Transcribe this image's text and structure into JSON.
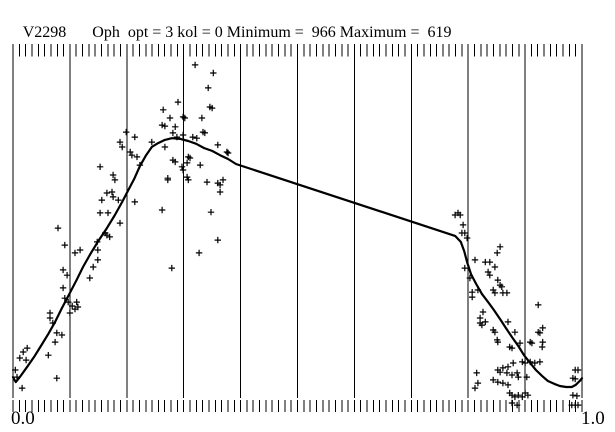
{
  "window": {
    "title_star": "V2298",
    "title_params": "Oph  opt = 3 kol = 0 Minimum =  966 Maximum =  619"
  },
  "axis": {
    "x_min_label": "0.0",
    "x_max_label": "1.0"
  },
  "colors": {
    "ink": "#000000",
    "paper": "#ffffff"
  },
  "chart_data": {
    "type": "scatter",
    "title": "V2298 Oph opt = 3 kol = 0 Minimum = 966 Maximum = 619",
    "xlabel": "",
    "ylabel": "",
    "x_axis": {
      "min_label": "0.0",
      "max_label": "1.0",
      "range": [
        0,
        1
      ]
    },
    "y_axis": {
      "labeled": false,
      "units": "relative level: 0 = plot bottom gridline end, 1 = plot top"
    },
    "grid": {
      "vertical_gridlines_at": [
        0,
        0.1,
        0.2,
        0.3,
        0.4,
        0.5,
        0.6,
        0.7,
        0.8,
        0.9,
        1.0
      ],
      "minor_tick_intervals": 90,
      "tick_combs": [
        "top",
        "bottom"
      ],
      "horizontal_gridlines": 0
    },
    "legend": "none",
    "series": [
      {
        "name": "observations",
        "type": "scatter",
        "marker": "+",
        "points": [
          [
            0.004,
            0.079
          ],
          [
            0.007,
            0.059
          ],
          [
            0.016,
            0.028
          ],
          [
            0.012,
            0.113
          ],
          [
            0.018,
            0.13
          ],
          [
            0.023,
            0.107
          ],
          [
            0.025,
            0.141
          ],
          [
            0.065,
            0.226
          ],
          [
            0.07,
            0.212
          ],
          [
            0.062,
            0.121
          ],
          [
            0.074,
            0.158
          ],
          [
            0.077,
            0.184
          ],
          [
            0.086,
            0.178
          ],
          [
            0.077,
            0.056
          ],
          [
            0.065,
            0.24
          ],
          [
            0.079,
            0.48
          ],
          [
            0.091,
            0.432
          ],
          [
            0.088,
            0.362
          ],
          [
            0.095,
            0.347
          ],
          [
            0.088,
            0.311
          ],
          [
            0.091,
            0.282
          ],
          [
            0.097,
            0.271
          ],
          [
            0.104,
            0.26
          ],
          [
            0.109,
            0.251
          ],
          [
            0.112,
            0.271
          ],
          [
            0.1,
            0.24
          ],
          [
            0.114,
            0.257
          ],
          [
            0.109,
            0.41
          ],
          [
            0.118,
            0.418
          ],
          [
            0.156,
            0.559
          ],
          [
            0.165,
            0.579
          ],
          [
            0.174,
            0.582
          ],
          [
            0.176,
            0.568
          ],
          [
            0.185,
            0.559
          ],
          [
            0.153,
            0.523
          ],
          [
            0.167,
            0.523
          ],
          [
            0.188,
            0.494
          ],
          [
            0.162,
            0.466
          ],
          [
            0.165,
            0.46
          ],
          [
            0.148,
            0.441
          ],
          [
            0.149,
            0.418
          ],
          [
            0.149,
            0.39
          ],
          [
            0.141,
            0.37
          ],
          [
            0.135,
            0.339
          ],
          [
            0.179,
            0.616
          ],
          [
            0.176,
            0.63
          ],
          [
            0.17,
            0.455
          ],
          [
            0.214,
            0.554
          ],
          [
            0.153,
            0.653
          ],
          [
            0.188,
            0.723
          ],
          [
            0.192,
            0.709
          ],
          [
            0.32,
            0.941
          ],
          [
            0.352,
            0.918
          ],
          [
            0.343,
            0.876
          ],
          [
            0.346,
            0.822
          ],
          [
            0.35,
            0.819
          ],
          [
            0.29,
            0.836
          ],
          [
            0.264,
            0.814
          ],
          [
            0.276,
            0.791
          ],
          [
            0.299,
            0.794
          ],
          [
            0.302,
            0.791
          ],
          [
            0.332,
            0.791
          ],
          [
            0.262,
            0.771
          ],
          [
            0.267,
            0.768
          ],
          [
            0.285,
            0.766
          ],
          [
            0.288,
            0.737
          ],
          [
            0.281,
            0.749
          ],
          [
            0.299,
            0.743
          ],
          [
            0.334,
            0.751
          ],
          [
            0.337,
            0.749
          ],
          [
            0.316,
            0.737
          ],
          [
            0.323,
            0.734
          ],
          [
            0.214,
            0.737
          ],
          [
            0.199,
            0.751
          ],
          [
            0.206,
            0.695
          ],
          [
            0.209,
            0.686
          ],
          [
            0.218,
            0.681
          ],
          [
            0.223,
            0.658
          ],
          [
            0.244,
            0.723
          ],
          [
            0.267,
            0.709
          ],
          [
            0.281,
            0.672
          ],
          [
            0.285,
            0.667
          ],
          [
            0.308,
            0.681
          ],
          [
            0.311,
            0.678
          ],
          [
            0.297,
            0.653
          ],
          [
            0.329,
            0.658
          ],
          [
            0.36,
            0.715
          ],
          [
            0.376,
            0.695
          ],
          [
            0.378,
            0.692
          ],
          [
            0.272,
            0.616
          ],
          [
            0.306,
            0.624
          ],
          [
            0.308,
            0.616
          ],
          [
            0.341,
            0.61
          ],
          [
            0.36,
            0.607
          ],
          [
            0.364,
            0.602
          ],
          [
            0.369,
            0.616
          ],
          [
            0.364,
            0.582
          ],
          [
            0.272,
            0.621
          ],
          [
            0.306,
            0.664
          ],
          [
            0.299,
            0.644
          ],
          [
            0.327,
            0.41
          ],
          [
            0.262,
            0.531
          ],
          [
            0.348,
            0.525
          ],
          [
            0.36,
            0.446
          ],
          [
            0.279,
            0.367
          ],
          [
            0.777,
            0.517
          ],
          [
            0.782,
            0.523
          ],
          [
            0.786,
            0.517
          ],
          [
            0.791,
            0.489
          ],
          [
            0.789,
            0.466
          ],
          [
            0.794,
            0.466
          ],
          [
            0.798,
            0.452
          ],
          [
            0.812,
            0.39
          ],
          [
            0.794,
            0.367
          ],
          [
            0.856,
            0.427
          ],
          [
            0.851,
            0.41
          ],
          [
            0.83,
            0.384
          ],
          [
            0.838,
            0.384
          ],
          [
            0.847,
            0.37
          ],
          [
            0.835,
            0.356
          ],
          [
            0.838,
            0.347
          ],
          [
            0.803,
            0.339
          ],
          [
            0.852,
            0.333
          ],
          [
            0.844,
            0.305
          ],
          [
            0.856,
            0.319
          ],
          [
            0.859,
            0.314
          ],
          [
            0.847,
            0.297
          ],
          [
            0.861,
            0.297
          ],
          [
            0.868,
            0.297
          ],
          [
            0.807,
            0.299
          ],
          [
            0.807,
            0.285
          ],
          [
            0.817,
            0.305
          ],
          [
            0.826,
            0.243
          ],
          [
            0.821,
            0.226
          ],
          [
            0.83,
            0.215
          ],
          [
            0.87,
            0.215
          ],
          [
            0.923,
            0.263
          ],
          [
            0.821,
            0.212
          ],
          [
            0.824,
            0.206
          ],
          [
            0.844,
            0.192
          ],
          [
            0.847,
            0.186
          ],
          [
            0.882,
            0.186
          ],
          [
            0.851,
            0.164
          ],
          [
            0.852,
            0.158
          ],
          [
            0.873,
            0.144
          ],
          [
            0.877,
            0.141
          ],
          [
            0.891,
            0.155
          ],
          [
            0.909,
            0.158
          ],
          [
            0.923,
            0.186
          ],
          [
            0.926,
            0.184
          ],
          [
            0.931,
            0.158
          ],
          [
            0.912,
            0.155
          ],
          [
            0.895,
            0.102
          ],
          [
            0.9,
            0.099
          ],
          [
            0.909,
            0.102
          ],
          [
            0.917,
            0.099
          ],
          [
            0.879,
            0.099
          ],
          [
            0.87,
            0.088
          ],
          [
            0.861,
            0.085
          ],
          [
            0.852,
            0.079
          ],
          [
            0.856,
            0.073
          ],
          [
            0.868,
            0.071
          ],
          [
            0.877,
            0.065
          ],
          [
            0.886,
            0.071
          ],
          [
            0.888,
            0.059
          ],
          [
            0.844,
            0.051
          ],
          [
            0.852,
            0.045
          ],
          [
            0.861,
            0.042
          ],
          [
            0.87,
            0.037
          ],
          [
            0.815,
            0.071
          ],
          [
            0.817,
            0.042
          ],
          [
            0.812,
            0.028
          ],
          [
            0.873,
            0.014
          ],
          [
            0.877,
            0.008
          ],
          [
            0.882,
            0.003
          ],
          [
            0.888,
            0.008
          ],
          [
            0.895,
            0.003
          ],
          [
            0.877,
            -0.014
          ],
          [
            0.886,
            -0.02
          ],
          [
            0.9,
            0.014
          ],
          [
            0.905,
            0.008
          ],
          [
            0.903,
            0.059
          ],
          [
            0.931,
            0.198
          ],
          [
            0.93,
            0.144
          ],
          [
            0.926,
            0.102
          ],
          [
            0.988,
            0.079
          ],
          [
            0.993,
            0.079
          ],
          [
            0.984,
            0.056
          ],
          [
            0.988,
            0.054
          ],
          [
            0.984,
            0.008
          ],
          [
            0.991,
            0.006
          ],
          [
            0.982,
            -0.02
          ],
          [
            0.988,
            -0.02
          ],
          [
            0.993,
            -0.02
          ]
        ]
      },
      {
        "name": "mean light curve",
        "type": "line",
        "points": [
          [
            0.0,
            0.059
          ],
          [
            0.005,
            0.045
          ],
          [
            0.012,
            0.059
          ],
          [
            0.025,
            0.088
          ],
          [
            0.037,
            0.116
          ],
          [
            0.049,
            0.147
          ],
          [
            0.062,
            0.181
          ],
          [
            0.074,
            0.215
          ],
          [
            0.086,
            0.254
          ],
          [
            0.098,
            0.291
          ],
          [
            0.111,
            0.331
          ],
          [
            0.123,
            0.37
          ],
          [
            0.137,
            0.41
          ],
          [
            0.151,
            0.446
          ],
          [
            0.165,
            0.48
          ],
          [
            0.179,
            0.517
          ],
          [
            0.192,
            0.554
          ],
          [
            0.202,
            0.585
          ],
          [
            0.213,
            0.619
          ],
          [
            0.223,
            0.655
          ],
          [
            0.234,
            0.686
          ],
          [
            0.244,
            0.709
          ],
          [
            0.255,
            0.72
          ],
          [
            0.267,
            0.729
          ],
          [
            0.279,
            0.734
          ],
          [
            0.294,
            0.732
          ],
          [
            0.308,
            0.726
          ],
          [
            0.322,
            0.718
          ],
          [
            0.336,
            0.706
          ],
          [
            0.35,
            0.698
          ],
          [
            0.364,
            0.686
          ],
          [
            0.378,
            0.675
          ],
          [
            0.392,
            0.661
          ],
          [
            0.777,
            0.458
          ],
          [
            0.787,
            0.441
          ],
          [
            0.793,
            0.415
          ],
          [
            0.798,
            0.384
          ],
          [
            0.805,
            0.35
          ],
          [
            0.814,
            0.322
          ],
          [
            0.824,
            0.294
          ],
          [
            0.835,
            0.271
          ],
          [
            0.845,
            0.249
          ],
          [
            0.856,
            0.223
          ],
          [
            0.866,
            0.198
          ],
          [
            0.877,
            0.172
          ],
          [
            0.888,
            0.147
          ],
          [
            0.898,
            0.121
          ],
          [
            0.909,
            0.099
          ],
          [
            0.919,
            0.079
          ],
          [
            0.93,
            0.062
          ],
          [
            0.94,
            0.048
          ],
          [
            0.951,
            0.04
          ],
          [
            0.961,
            0.034
          ],
          [
            0.972,
            0.031
          ],
          [
            0.982,
            0.031
          ],
          [
            0.989,
            0.037
          ],
          [
            0.996,
            0.048
          ],
          [
            1.0,
            0.056
          ]
        ]
      }
    ]
  }
}
